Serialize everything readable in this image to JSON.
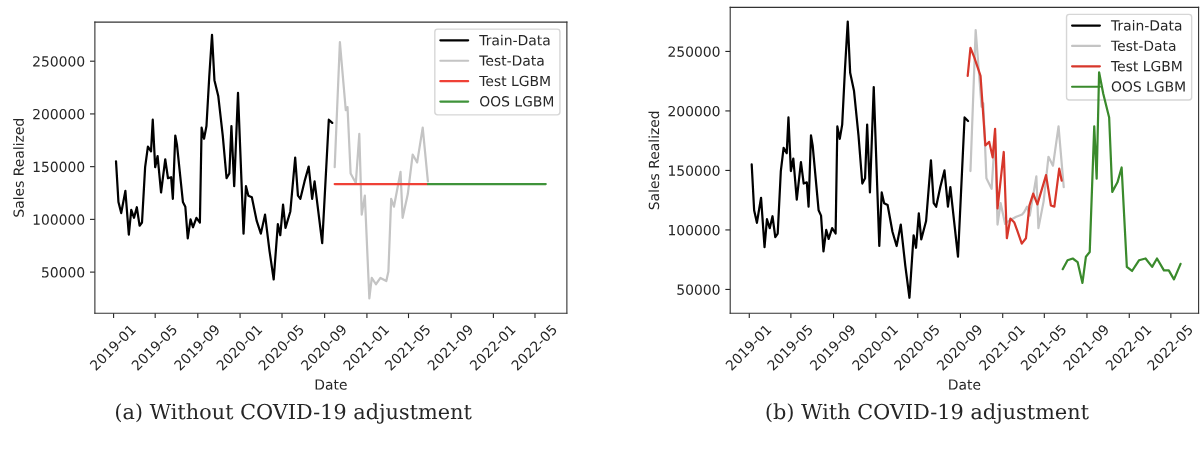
{
  "chart_data": [
    {
      "type": "line",
      "xlabel": "Date",
      "ylabel": "Sales Realized",
      "annotations": [
        "(a) Without COVID-19 adjustment"
      ],
      "xlim": [
        "2018-11-08",
        "2022-08-01"
      ],
      "ylim": [
        11000,
        287000
      ],
      "xticks": [
        "2019-01",
        "2019-05",
        "2019-09",
        "2020-01",
        "2020-05",
        "2020-09",
        "2021-01",
        "2021-05",
        "2021-09",
        "2022-01",
        "2022-05"
      ],
      "yticks": [
        50000,
        100000,
        150000,
        200000,
        250000
      ],
      "grid": false,
      "legend": "top right",
      "marker": "none",
      "line_style": "solid",
      "series": [
        {
          "name": "Train-Data",
          "color": "#000000",
          "x": [
            "2019-01-08",
            "2019-01-15",
            "2019-01-23",
            "2019-02-04",
            "2019-02-14",
            "2019-02-21",
            "2019-03-01",
            "2019-03-09",
            "2019-03-17",
            "2019-03-24",
            "2019-04-02",
            "2019-04-10",
            "2019-04-19",
            "2019-04-24",
            "2019-05-01",
            "2019-05-08",
            "2019-05-18",
            "2019-05-30",
            "2019-06-07",
            "2019-06-16",
            "2019-06-21",
            "2019-06-28",
            "2019-07-03",
            "2019-07-20",
            "2019-07-27",
            "2019-08-03",
            "2019-08-11",
            "2019-08-18",
            "2019-08-28",
            "2019-09-07",
            "2019-09-12",
            "2019-09-19",
            "2019-09-26",
            "2019-10-04",
            "2019-10-12",
            "2019-10-19",
            "2019-10-30",
            "2019-11-12",
            "2019-11-23",
            "2019-12-01",
            "2019-12-07",
            "2019-12-15",
            "2019-12-26",
            "2020-01-11",
            "2020-01-18",
            "2020-01-25",
            "2020-02-04",
            "2020-02-18",
            "2020-03-01",
            "2020-03-13",
            "2020-03-26",
            "2020-04-07",
            "2020-04-19",
            "2020-04-26",
            "2020-05-04",
            "2020-05-11",
            "2020-05-25",
            "2020-06-08",
            "2020-06-16",
            "2020-06-23",
            "2020-07-05",
            "2020-07-17",
            "2020-07-27",
            "2020-08-03",
            "2020-08-25",
            "2020-09-13",
            "2020-09-23"
          ],
          "values": [
            155000,
            116500,
            106000,
            127000,
            85500,
            109000,
            101500,
            111500,
            94000,
            97000,
            149500,
            169000,
            164500,
            194500,
            149500,
            160000,
            125500,
            157000,
            139000,
            140000,
            119500,
            179500,
            170500,
            116500,
            112000,
            82000,
            100000,
            92500,
            101500,
            97000,
            187000,
            176500,
            188500,
            235000,
            275000,
            232000,
            217000,
            179500,
            139000,
            143500,
            188500,
            131500,
            220000,
            86500,
            131500,
            122500,
            121000,
            98500,
            86500,
            104500,
            70000,
            43000,
            95500,
            85000,
            114000,
            92000,
            107500,
            158500,
            122500,
            119500,
            136000,
            150000,
            119500,
            136000,
            77500,
            194500,
            191500
          ]
        },
        {
          "name": "Test-Data",
          "color": "#c4c4c4",
          "x": [
            "2020-09-30",
            "2020-10-15",
            "2020-11-01",
            "2020-11-06",
            "2020-11-15",
            "2020-11-30",
            "2020-12-10",
            "2020-12-17",
            "2020-12-26",
            "2021-01-08",
            "2021-01-15",
            "2021-01-27",
            "2021-02-09",
            "2021-02-26",
            "2021-03-04",
            "2021-03-12",
            "2021-03-20",
            "2021-04-08",
            "2021-04-14",
            "2021-04-29",
            "2021-05-13",
            "2021-05-26",
            "2021-06-11",
            "2021-06-26"
          ],
          "values": [
            149500,
            268000,
            203500,
            206500,
            143500,
            134500,
            181000,
            104500,
            122500,
            25000,
            44500,
            38500,
            44500,
            41500,
            50500,
            119500,
            112000,
            145000,
            101500,
            124000,
            161500,
            154000,
            187000,
            136000
          ]
        },
        {
          "name": "Test LGBM",
          "color": "#ef4136",
          "x": [
            "2020-09-30",
            "2021-06-26"
          ],
          "values": [
            133500,
            133500
          ]
        },
        {
          "name": "OOS LGBM",
          "color": "#3f933a",
          "x": [
            "2021-06-26",
            "2022-06-01"
          ],
          "values": [
            133500,
            133500
          ]
        }
      ]
    },
    {
      "type": "line",
      "xlabel": "Date",
      "ylabel": "Sales Realized",
      "annotations": [
        "(b) With COVID-19 adjustment"
      ],
      "xlim": [
        "2018-11-07",
        "2022-07-20"
      ],
      "ylim": [
        30000,
        287000
      ],
      "xticks": [
        "2019-01",
        "2019-05",
        "2019-09",
        "2020-01",
        "2020-05",
        "2020-09",
        "2021-01",
        "2021-05",
        "2021-09",
        "2022-01",
        "2022-05"
      ],
      "yticks": [
        50000,
        100000,
        150000,
        200000,
        250000
      ],
      "grid": false,
      "legend": "top right",
      "marker": "none",
      "line_style": "solid",
      "series": [
        {
          "name": "Train-Data",
          "color": "#000000",
          "x": [
            "2019-01-08",
            "2019-01-15",
            "2019-01-23",
            "2019-02-04",
            "2019-02-14",
            "2019-02-21",
            "2019-03-01",
            "2019-03-09",
            "2019-03-17",
            "2019-03-24",
            "2019-04-02",
            "2019-04-10",
            "2019-04-19",
            "2019-04-24",
            "2019-05-01",
            "2019-05-08",
            "2019-05-18",
            "2019-05-30",
            "2019-06-07",
            "2019-06-16",
            "2019-06-21",
            "2019-06-28",
            "2019-07-03",
            "2019-07-20",
            "2019-07-27",
            "2019-08-03",
            "2019-08-11",
            "2019-08-18",
            "2019-08-28",
            "2019-09-07",
            "2019-09-12",
            "2019-09-19",
            "2019-09-26",
            "2019-10-04",
            "2019-10-12",
            "2019-10-19",
            "2019-10-30",
            "2019-11-12",
            "2019-11-23",
            "2019-12-01",
            "2019-12-07",
            "2019-12-15",
            "2019-12-26",
            "2020-01-11",
            "2020-01-18",
            "2020-01-25",
            "2020-02-04",
            "2020-02-18",
            "2020-03-01",
            "2020-03-13",
            "2020-03-26",
            "2020-04-07",
            "2020-04-19",
            "2020-04-26",
            "2020-05-04",
            "2020-05-11",
            "2020-05-25",
            "2020-06-08",
            "2020-06-16",
            "2020-06-23",
            "2020-07-05",
            "2020-07-17",
            "2020-07-27",
            "2020-08-03",
            "2020-08-25",
            "2020-09-13",
            "2020-09-23"
          ],
          "values": [
            155000,
            116500,
            106000,
            127000,
            85500,
            109000,
            101500,
            111500,
            94000,
            97000,
            149500,
            169000,
            164500,
            194500,
            149500,
            160000,
            125500,
            157000,
            139000,
            140000,
            119500,
            179500,
            170500,
            116500,
            112000,
            82000,
            100000,
            92500,
            101500,
            97000,
            187000,
            176500,
            188500,
            235000,
            275000,
            232000,
            217000,
            179500,
            139000,
            143500,
            188500,
            131500,
            220000,
            86500,
            131500,
            122500,
            121000,
            98500,
            86500,
            104500,
            70000,
            43000,
            95500,
            85000,
            114000,
            92000,
            107500,
            158500,
            122500,
            119500,
            136000,
            150000,
            119500,
            136000,
            77500,
            194500,
            191500
          ]
        },
        {
          "name": "Test-Data",
          "color": "#c4c4c4",
          "x": [
            "2020-09-30",
            "2020-10-15",
            "2020-11-01",
            "2020-11-06",
            "2020-11-15",
            "2020-11-30",
            "2020-12-10",
            "2020-12-17",
            "2020-12-26",
            "2021-01-08",
            "2021-01-15",
            "2021-01-27",
            "2021-02-09",
            "2021-02-26",
            "2021-03-04",
            "2021-03-12",
            "2021-03-20",
            "2021-04-08",
            "2021-04-14",
            "2021-04-29",
            "2021-05-13",
            "2021-05-26",
            "2021-06-11",
            "2021-06-26"
          ],
          "values": [
            149500,
            268000,
            203500,
            206500,
            143500,
            134500,
            181000,
            104500,
            122500,
            105000,
            107000,
            109000,
            111000,
            113000,
            115000,
            119500,
            112000,
            145000,
            101500,
            124000,
            161500,
            154000,
            187000,
            136000
          ]
        },
        {
          "name": "Test LGBM",
          "color": "#d7372b",
          "x": [
            "2020-09-22",
            "2020-09-30",
            "2020-10-11",
            "2020-10-29",
            "2020-11-12",
            "2020-11-23",
            "2020-12-03",
            "2020-12-10",
            "2020-12-17",
            "2021-01-04",
            "2021-01-13",
            "2021-01-23",
            "2021-02-03",
            "2021-02-12",
            "2021-02-25",
            "2021-03-09",
            "2021-03-19",
            "2021-03-30",
            "2021-04-11",
            "2021-05-06",
            "2021-05-20",
            "2021-05-30",
            "2021-06-13",
            "2021-06-20"
          ],
          "values": [
            229500,
            253000,
            245000,
            229500,
            171000,
            174000,
            161000,
            185000,
            118000,
            165500,
            93000,
            109500,
            106500,
            99500,
            88500,
            93000,
            120500,
            130500,
            121500,
            146000,
            120500,
            119500,
            151500,
            141500
          ]
        },
        {
          "name": "OOS LGBM",
          "color": "#3a8a2c",
          "x": [
            "2021-06-23",
            "2021-07-07",
            "2021-07-22",
            "2021-08-05",
            "2021-08-19",
            "2021-08-29",
            "2021-09-09",
            "2021-09-22",
            "2021-09-29",
            "2021-10-06",
            "2021-10-18",
            "2021-11-04",
            "2021-11-13",
            "2021-11-28",
            "2021-12-10",
            "2021-12-25",
            "2022-01-09",
            "2022-01-29",
            "2022-02-17",
            "2022-03-08",
            "2022-03-22",
            "2022-04-11",
            "2022-04-25",
            "2022-05-10",
            "2022-05-29"
          ],
          "values": [
            67000,
            74500,
            76000,
            73000,
            55500,
            77500,
            81500,
            187000,
            143000,
            232500,
            214500,
            194500,
            132000,
            140000,
            152500,
            69000,
            65500,
            74500,
            76000,
            69000,
            76000,
            66000,
            66000,
            58500,
            71500
          ]
        }
      ]
    }
  ]
}
